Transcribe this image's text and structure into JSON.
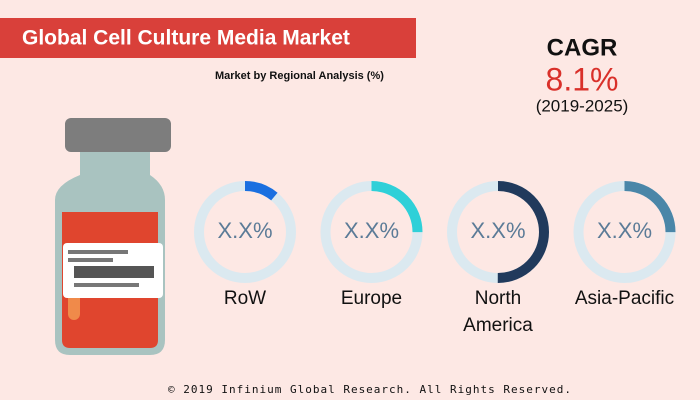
{
  "header": {
    "title": "Global Cell Culture Media Market",
    "subtitle": "Market by Regional Analysis (%)"
  },
  "cagr": {
    "label": "CAGR",
    "value": "8.1%",
    "period": "(2019-2025)"
  },
  "regions": [
    {
      "name": "RoW",
      "value_label": "X.X%",
      "arc_percent": 11,
      "color": "#1a6fe0"
    },
    {
      "name": "Europe",
      "value_label": "X.X%",
      "arc_percent": 25,
      "color": "#2fd0d8"
    },
    {
      "name": [
        "North",
        "America"
      ],
      "value_label": "X.X%",
      "arc_percent": 50,
      "color": "#213a5c"
    },
    {
      "name": "Asia-Pacific",
      "value_label": "X.X%",
      "arc_percent": 25,
      "color": "#4a86a8"
    }
  ],
  "footer": "© 2019 Infinium Global Research. All Rights Reserved."
}
